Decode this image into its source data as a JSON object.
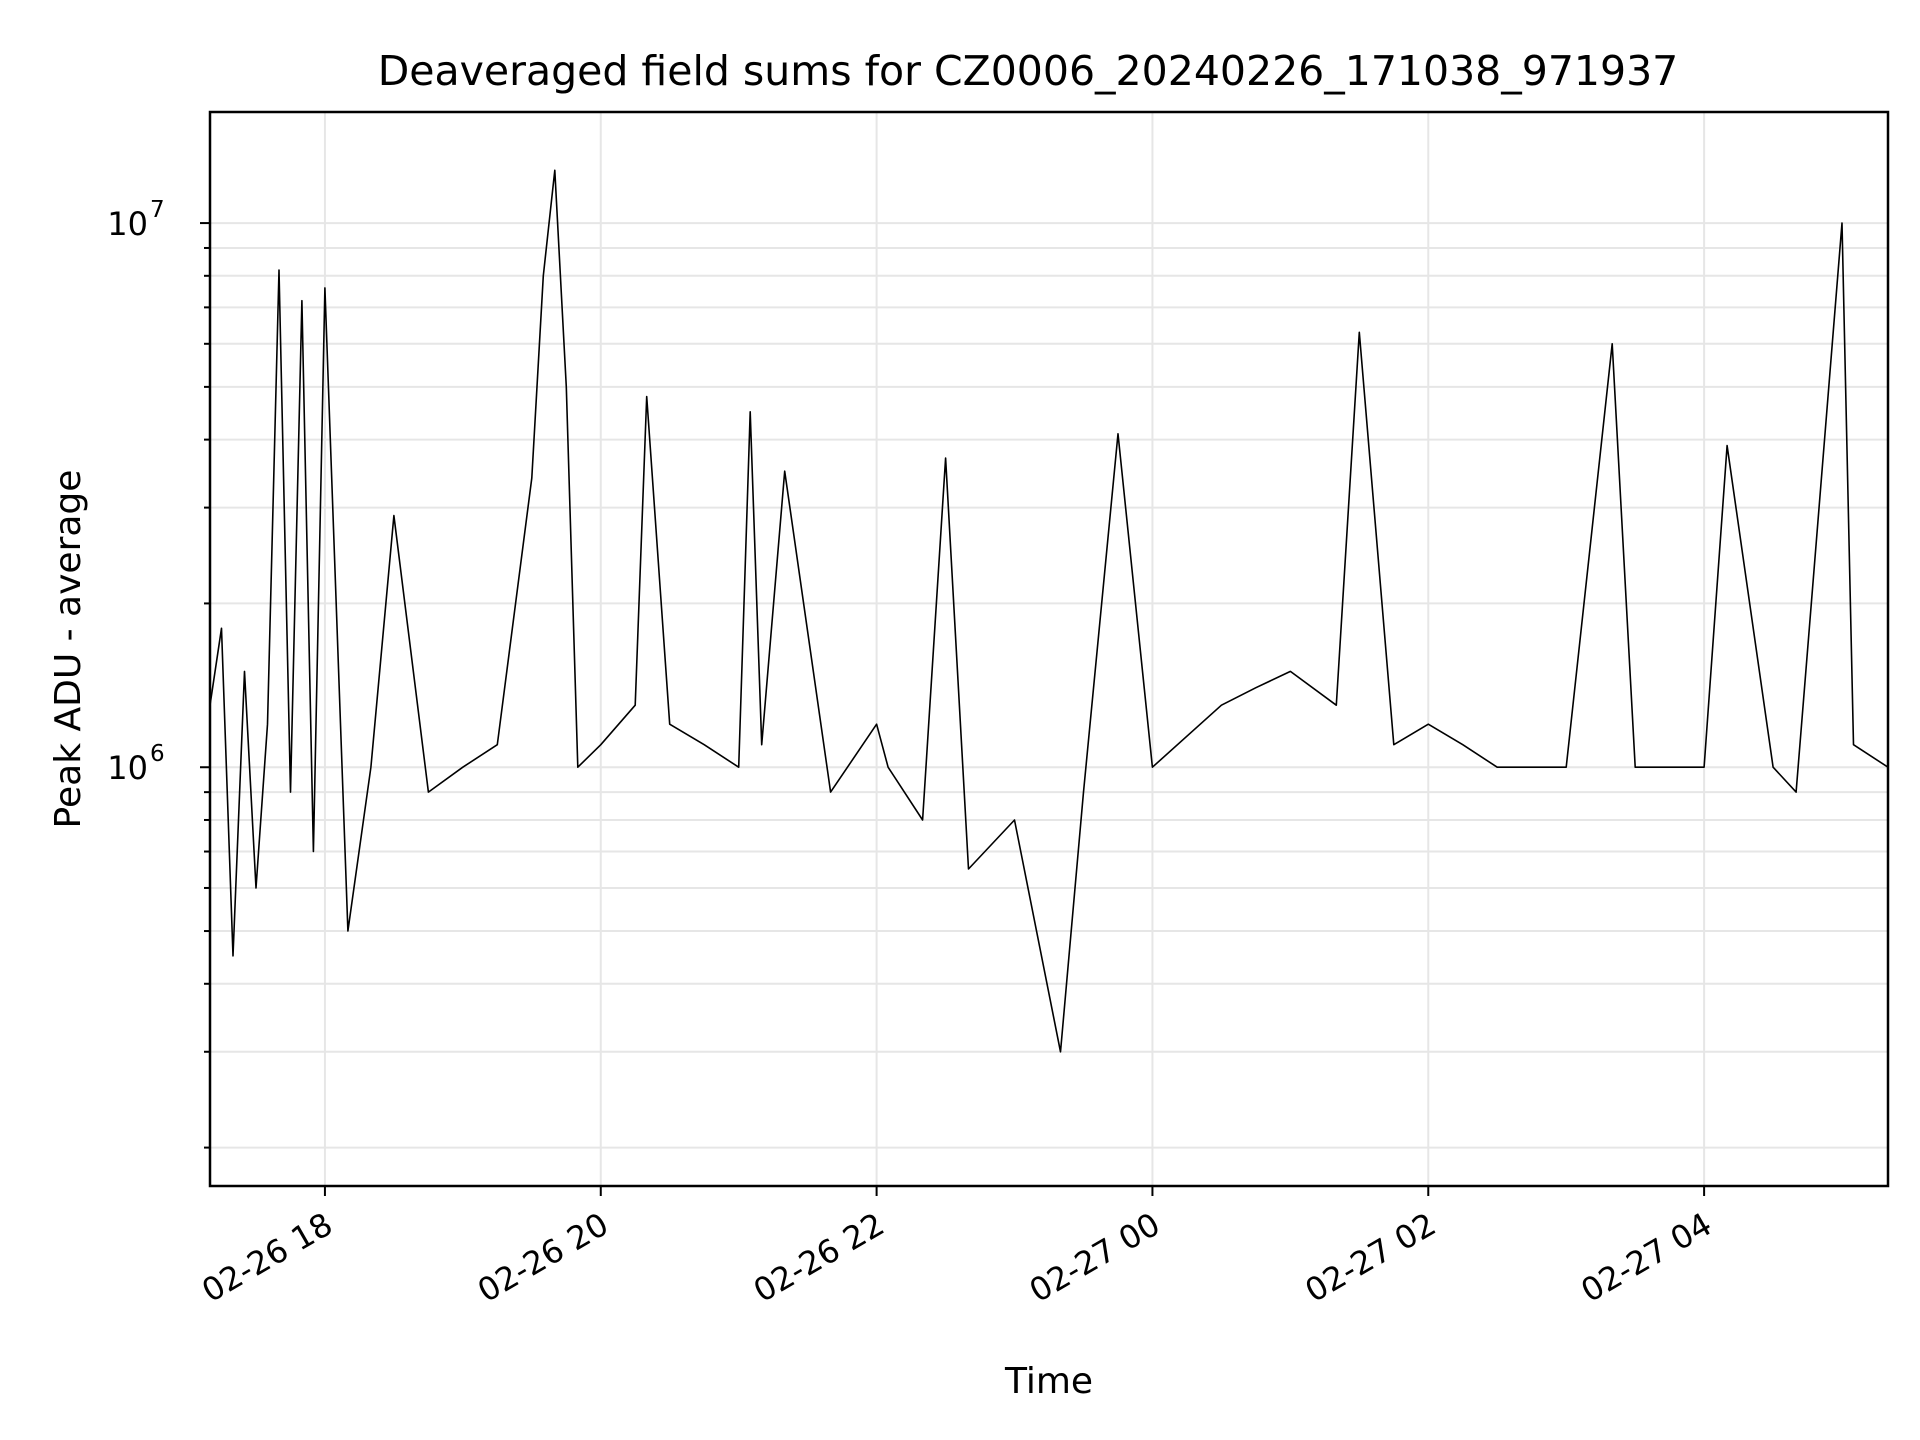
{
  "chart_data": {
    "type": "line",
    "title": "Deaveraged field sums for CZ0006_20240226_171038_971937",
    "xlabel": "Time",
    "ylabel": "Peak ADU - average",
    "yscale": "log",
    "grid": true,
    "xlim": [
      "2024-02-26 17:10",
      "2024-02-27 05:20"
    ],
    "ylim": [
      170000,
      16000000
    ],
    "x_ticks": [
      {
        "value": "2024-02-26 18:00",
        "label": "02-26 18"
      },
      {
        "value": "2024-02-26 20:00",
        "label": "02-26 20"
      },
      {
        "value": "2024-02-26 22:00",
        "label": "02-26 22"
      },
      {
        "value": "2024-02-27 00:00",
        "label": "02-27 00"
      },
      {
        "value": "2024-02-27 02:00",
        "label": "02-27 02"
      },
      {
        "value": "2024-02-27 04:00",
        "label": "02-27 04"
      }
    ],
    "y_ticks": [
      {
        "value": 1000000,
        "base": "10",
        "exp": "6"
      },
      {
        "value": 10000000,
        "base": "10",
        "exp": "7"
      }
    ],
    "line_color": "#000000",
    "grid_color": "#e6e6e6",
    "series": [
      {
        "x": [
          "2024-02-26 17:10",
          "2024-02-26 17:15",
          "2024-02-26 17:20",
          "2024-02-26 17:25",
          "2024-02-26 17:30",
          "2024-02-26 17:35",
          "2024-02-26 17:40",
          "2024-02-26 17:45",
          "2024-02-26 17:50",
          "2024-02-26 17:55",
          "2024-02-26 18:00",
          "2024-02-26 18:10",
          "2024-02-26 18:20",
          "2024-02-26 18:30",
          "2024-02-26 18:45",
          "2024-02-26 19:00",
          "2024-02-26 19:15",
          "2024-02-26 19:30",
          "2024-02-26 19:35",
          "2024-02-26 19:40",
          "2024-02-26 19:45",
          "2024-02-26 19:50",
          "2024-02-26 20:00",
          "2024-02-26 20:15",
          "2024-02-26 20:20",
          "2024-02-26 20:30",
          "2024-02-26 20:45",
          "2024-02-26 21:00",
          "2024-02-26 21:05",
          "2024-02-26 21:10",
          "2024-02-26 21:20",
          "2024-02-26 21:40",
          "2024-02-26 22:00",
          "2024-02-26 22:05",
          "2024-02-26 22:20",
          "2024-02-26 22:30",
          "2024-02-26 22:40",
          "2024-02-26 23:00",
          "2024-02-26 23:20",
          "2024-02-26 23:30",
          "2024-02-26 23:45",
          "2024-02-27 00:00",
          "2024-02-27 00:30",
          "2024-02-27 00:45",
          "2024-02-27 01:00",
          "2024-02-27 01:20",
          "2024-02-27 01:30",
          "2024-02-27 01:45",
          "2024-02-27 02:00",
          "2024-02-27 02:15",
          "2024-02-27 02:30",
          "2024-02-27 03:00",
          "2024-02-27 03:20",
          "2024-02-27 03:30",
          "2024-02-27 04:00",
          "2024-02-27 04:10",
          "2024-02-27 04:30",
          "2024-02-27 04:40",
          "2024-02-27 05:00",
          "2024-02-27 05:05",
          "2024-02-27 05:20"
        ],
        "y": [
          1300000,
          1800000,
          450000,
          1500000,
          600000,
          1200000,
          8200000,
          900000,
          7200000,
          700000,
          7600000,
          500000,
          1000000,
          2900000,
          900000,
          1000000,
          1100000,
          3400000,
          8000000,
          12500000,
          5000000,
          1000000,
          1100000,
          1300000,
          4800000,
          1200000,
          1100000,
          1000000,
          4500000,
          1100000,
          3500000,
          900000,
          1200000,
          1000000,
          800000,
          3700000,
          650000,
          800000,
          300000,
          900000,
          4100000,
          1000000,
          1300000,
          1400000,
          1500000,
          1300000,
          6300000,
          1100000,
          1200000,
          1100000,
          1000000,
          1000000,
          6000000,
          1000000,
          1000000,
          3900000,
          1000000,
          900000,
          10000000,
          1100000,
          1000000
        ]
      }
    ]
  }
}
